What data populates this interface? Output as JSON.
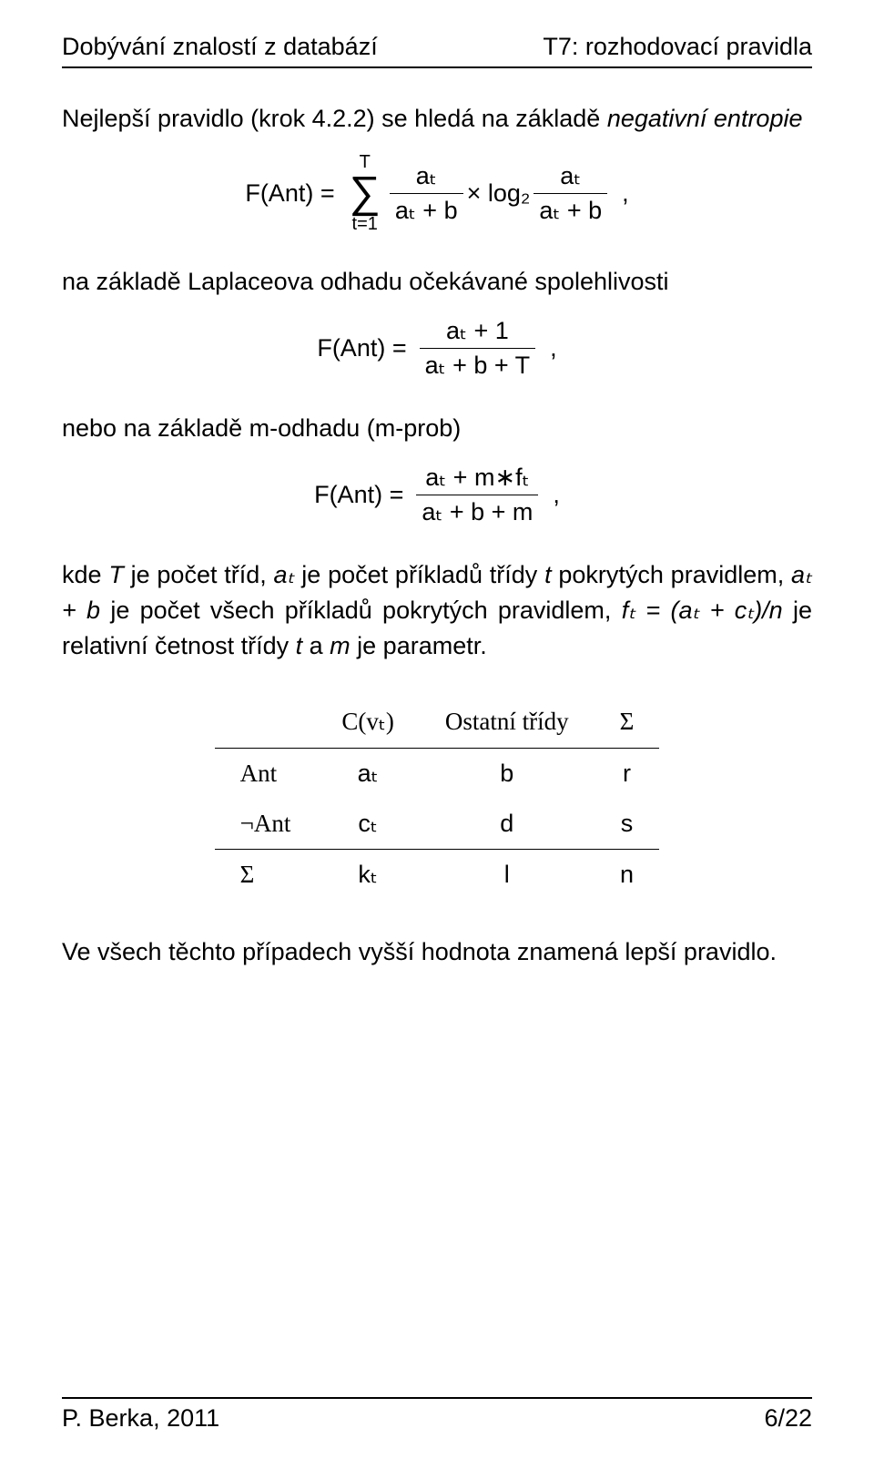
{
  "header": {
    "left": "Dobývání znalostí z databází",
    "right": "T7: rozhodovací pravidla"
  },
  "intro": {
    "pre": "Nejlepší pravidlo (krok 4.2.2) se hledá na základě ",
    "emph": "negativní entropie"
  },
  "eq_entropy": {
    "lhs": "F(Ant) =",
    "upper": "T",
    "lower": "t=1",
    "frac1_num": "aₜ",
    "frac1_den": "aₜ + b",
    "mid": " × log₂ ",
    "frac2_num": "aₜ",
    "frac2_den": "aₜ + b",
    "tail": " ,"
  },
  "laplace_intro": "na základě Laplaceova odhadu očekávané spolehlivosti",
  "eq_laplace": {
    "lhs": "F(Ant) = ",
    "num": "aₜ + 1",
    "den": "aₜ + b + T",
    "tail": " ,"
  },
  "mprob_intro": "nebo na základě m-odhadu (m-prob)",
  "eq_mprob": {
    "lhs": "F(Ant) = ",
    "num": "aₜ + m∗fₜ",
    "den": "aₜ + b + m",
    "tail": " ,"
  },
  "outro": {
    "p1a": "kde ",
    "T": "T",
    "p1b": " je počet tříd, ",
    "at": "aₜ",
    "p1c": " je počet příkladů třídy ",
    "t": "t",
    "p1d": " pokrytých pravidlem, ",
    "atb": "aₜ + b",
    "p1e": " je počet všech příkladů pokrytých pravidlem, ",
    "ft": "fₜ = (aₜ + cₜ)/n",
    "p1f": " je relativní četnost třídy ",
    "t2": "t",
    "p1g": " a ",
    "m": "m",
    "p1h": " je parametr."
  },
  "table": {
    "head": [
      "",
      "C(vₜ)",
      "Ostatní třídy",
      "Σ"
    ],
    "rows": [
      [
        "Ant",
        "aₜ",
        "b",
        "r"
      ],
      [
        "¬Ant",
        "cₜ",
        "d",
        "s"
      ],
      [
        "Σ",
        "kₜ",
        "l",
        "n"
      ]
    ]
  },
  "closing": "Ve všech těchto případech vyšší hodnota znamená lepší pravidlo.",
  "footer": {
    "left": "P. Berka, 2011",
    "right": "6/22"
  }
}
